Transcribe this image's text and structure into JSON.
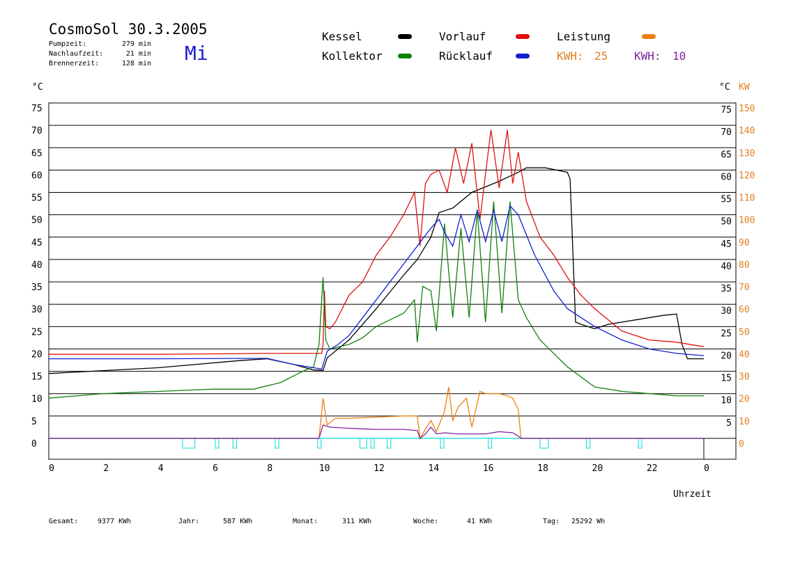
{
  "header": {
    "title": "CosmoSol 30.3.2005",
    "weekday": "Mi",
    "stats": [
      {
        "label": "Pumpzeit:",
        "value": "279 min"
      },
      {
        "label": "Nachlaufzeit:",
        "value": "21 min"
      },
      {
        "label": "Brennerzeit:",
        "value": "128 min"
      }
    ]
  },
  "legend": [
    {
      "name": "Kessel",
      "color": "#000000"
    },
    {
      "name": "Vorlauf",
      "color": "#e01010"
    },
    {
      "name": "Leistung",
      "color": "#f08010"
    },
    {
      "name": "Kollektor",
      "color": "#108010"
    },
    {
      "name": "Rücklauf",
      "color": "#1020d0"
    }
  ],
  "kwh": [
    {
      "label": "KWH:",
      "value": "25",
      "color": "#e08020"
    },
    {
      "label": "KWH:",
      "value": "10",
      "color": "#8020a0"
    }
  ],
  "footer": [
    {
      "label": "Gesamt:",
      "value": "9377 KWh"
    },
    {
      "label": "Jahr:",
      "value": "587 KWh"
    },
    {
      "label": "Monat:",
      "value": "311 KWh"
    },
    {
      "label": "Woche:",
      "value": "41 KWh"
    },
    {
      "label": "Tag:",
      "value": "25292 Wh"
    }
  ],
  "chart_data": {
    "type": "line",
    "xlabel": "Uhrzeit",
    "ylabel_left": "°C",
    "ylabel_right": "°C",
    "ylabel_power": "KW",
    "xlim": [
      0,
      24
    ],
    "ylim": [
      0,
      75
    ],
    "power_lim": [
      0,
      150
    ],
    "x_ticks": [
      "0",
      "2",
      "4",
      "6",
      "8",
      "10",
      "12",
      "14",
      "16",
      "18",
      "20",
      "22",
      "0"
    ],
    "y_ticks_left": [
      "75",
      "70",
      "65",
      "60",
      "55",
      "50",
      "45",
      "40",
      "35",
      "30",
      "25",
      "20",
      "15",
      "10",
      "5",
      "0"
    ],
    "y_ticks_right": [
      "75",
      "70",
      "65",
      "60",
      "55",
      "50",
      "45",
      "40",
      "35",
      "30",
      "25",
      "20",
      "15",
      "10",
      "5"
    ],
    "power_ticks": [
      "150",
      "140",
      "130",
      "120",
      "110",
      "100",
      "90",
      "80",
      "70",
      "60",
      "50",
      "40",
      "30",
      "20",
      "10",
      "0"
    ],
    "grid": true,
    "series": [
      {
        "name": "Kessel",
        "color": "#000000",
        "points": [
          [
            0,
            14.5
          ],
          [
            4,
            15.8
          ],
          [
            7,
            17.4
          ],
          [
            8,
            17.8
          ],
          [
            9,
            16.5
          ],
          [
            9.7,
            15.3
          ],
          [
            10.05,
            15.2
          ],
          [
            10.2,
            18
          ],
          [
            11,
            22
          ],
          [
            12,
            29
          ],
          [
            13,
            36.5
          ],
          [
            13.5,
            40
          ],
          [
            14,
            45
          ],
          [
            14.3,
            50.5
          ],
          [
            14.8,
            51.5
          ],
          [
            15.5,
            55
          ],
          [
            16.5,
            57.5
          ],
          [
            17.2,
            59.5
          ],
          [
            17.5,
            60.5
          ],
          [
            18.2,
            60.5
          ],
          [
            19,
            59.5
          ],
          [
            19.1,
            58
          ],
          [
            19.3,
            26
          ],
          [
            19.5,
            25.5
          ],
          [
            20,
            24.5
          ],
          [
            20.5,
            25.5
          ],
          [
            21.5,
            26.5
          ],
          [
            22.5,
            27.5
          ],
          [
            23,
            27.8
          ],
          [
            23.2,
            21
          ],
          [
            23.4,
            17.8
          ],
          [
            24,
            17.8
          ]
        ]
      },
      {
        "name": "Vorlauf",
        "color": "#e01010",
        "points": [
          [
            0,
            18.8
          ],
          [
            4,
            18.8
          ],
          [
            8,
            19
          ],
          [
            10,
            19
          ],
          [
            10.05,
            21
          ],
          [
            10.1,
            33
          ],
          [
            10.15,
            25
          ],
          [
            10.3,
            24.5
          ],
          [
            10.5,
            26
          ],
          [
            11,
            32
          ],
          [
            11.5,
            35
          ],
          [
            12,
            41
          ],
          [
            12.5,
            45
          ],
          [
            13,
            50
          ],
          [
            13.4,
            55
          ],
          [
            13.6,
            43
          ],
          [
            13.8,
            57
          ],
          [
            14,
            59
          ],
          [
            14.3,
            60
          ],
          [
            14.6,
            55
          ],
          [
            14.9,
            65
          ],
          [
            15.2,
            57
          ],
          [
            15.5,
            66
          ],
          [
            15.8,
            49
          ],
          [
            16.2,
            69
          ],
          [
            16.5,
            56
          ],
          [
            16.8,
            69
          ],
          [
            17,
            57
          ],
          [
            17.2,
            64
          ],
          [
            17.5,
            53
          ],
          [
            18,
            45
          ],
          [
            18.5,
            41
          ],
          [
            19,
            36
          ],
          [
            19.5,
            32
          ],
          [
            20,
            29
          ],
          [
            21,
            24
          ],
          [
            22,
            22
          ],
          [
            23,
            21.5
          ],
          [
            24,
            20.5
          ]
        ]
      },
      {
        "name": "Kollektor",
        "color": "#108010",
        "points": [
          [
            0,
            9
          ],
          [
            2,
            10
          ],
          [
            4,
            10.5
          ],
          [
            6,
            11
          ],
          [
            7.5,
            11
          ],
          [
            8.5,
            12.5
          ],
          [
            9.3,
            15
          ],
          [
            9.7,
            16
          ],
          [
            9.9,
            21
          ],
          [
            10.05,
            36
          ],
          [
            10.15,
            22
          ],
          [
            10.3,
            20
          ],
          [
            11,
            21
          ],
          [
            11.5,
            22.5
          ],
          [
            12,
            25
          ],
          [
            12.5,
            26.5
          ],
          [
            13,
            28
          ],
          [
            13.4,
            31
          ],
          [
            13.5,
            21.5
          ],
          [
            13.7,
            34
          ],
          [
            14,
            33
          ],
          [
            14.2,
            24
          ],
          [
            14.5,
            48
          ],
          [
            14.8,
            27
          ],
          [
            15.1,
            47
          ],
          [
            15.4,
            27
          ],
          [
            15.7,
            51
          ],
          [
            16,
            26
          ],
          [
            16.3,
            53
          ],
          [
            16.6,
            28
          ],
          [
            16.9,
            53
          ],
          [
            17.2,
            31
          ],
          [
            17.5,
            27
          ],
          [
            18,
            22
          ],
          [
            19,
            16
          ],
          [
            20,
            11.5
          ],
          [
            21,
            10.5
          ],
          [
            22,
            10
          ],
          [
            23,
            9.5
          ],
          [
            24,
            9.5
          ]
        ]
      },
      {
        "name": "Rücklauf",
        "color": "#1020d0",
        "points": [
          [
            0,
            17.8
          ],
          [
            4,
            17.8
          ],
          [
            8,
            17.9
          ],
          [
            9,
            16.5
          ],
          [
            10,
            15.5
          ],
          [
            10.05,
            16.5
          ],
          [
            10.2,
            19.5
          ],
          [
            10.6,
            21
          ],
          [
            11,
            23
          ],
          [
            12,
            31
          ],
          [
            13,
            39
          ],
          [
            13.5,
            43
          ],
          [
            14,
            47
          ],
          [
            14.3,
            49
          ],
          [
            14.5,
            46
          ],
          [
            14.8,
            43
          ],
          [
            15.1,
            50
          ],
          [
            15.4,
            44
          ],
          [
            15.7,
            51
          ],
          [
            16,
            44
          ],
          [
            16.3,
            51
          ],
          [
            16.6,
            44
          ],
          [
            16.9,
            52
          ],
          [
            17.2,
            50
          ],
          [
            17.8,
            41
          ],
          [
            18.5,
            33
          ],
          [
            19,
            29
          ],
          [
            20,
            25
          ],
          [
            21,
            22
          ],
          [
            22,
            20
          ],
          [
            23,
            19
          ],
          [
            24,
            18.5
          ]
        ]
      }
    ],
    "power_series": [
      {
        "name": "Leistung",
        "color": "#f08010",
        "points": [
          [
            0,
            0
          ],
          [
            9.9,
            0
          ],
          [
            10.05,
            18
          ],
          [
            10.2,
            6
          ],
          [
            10.5,
            9
          ],
          [
            11,
            9
          ],
          [
            12,
            9.5
          ],
          [
            13,
            10
          ],
          [
            13.5,
            10
          ],
          [
            13.6,
            0
          ],
          [
            13.8,
            4
          ],
          [
            14,
            8
          ],
          [
            14.2,
            3
          ],
          [
            14.5,
            12
          ],
          [
            14.65,
            23
          ],
          [
            14.8,
            8
          ],
          [
            15,
            14
          ],
          [
            15.3,
            18
          ],
          [
            15.5,
            5
          ],
          [
            15.8,
            21
          ],
          [
            16,
            20
          ],
          [
            16.2,
            20
          ],
          [
            16.5,
            20
          ],
          [
            16.8,
            19
          ],
          [
            17,
            18
          ],
          [
            17.2,
            13
          ],
          [
            17.3,
            0
          ],
          [
            24,
            0
          ]
        ]
      },
      {
        "name": "KWH",
        "color": "#8020a0",
        "points": [
          [
            0,
            0
          ],
          [
            9.9,
            0
          ],
          [
            10.05,
            6
          ],
          [
            10.3,
            5
          ],
          [
            11,
            4.5
          ],
          [
            12,
            4
          ],
          [
            13,
            4
          ],
          [
            13.5,
            3.5
          ],
          [
            13.6,
            0
          ],
          [
            13.8,
            2
          ],
          [
            14,
            5
          ],
          [
            14.2,
            2
          ],
          [
            14.5,
            2.5
          ],
          [
            15,
            2
          ],
          [
            15.5,
            2
          ],
          [
            16,
            2
          ],
          [
            16.5,
            3
          ],
          [
            17,
            2.5
          ],
          [
            17.2,
            1
          ],
          [
            17.3,
            0
          ],
          [
            24,
            0
          ]
        ]
      }
    ],
    "pump_ranges": [
      [
        4.9,
        5.35
      ],
      [
        6.1,
        6.2
      ],
      [
        6.75,
        6.85
      ],
      [
        8.3,
        8.4
      ],
      [
        9.85,
        9.95
      ],
      [
        11.4,
        11.65
      ],
      [
        11.8,
        11.9
      ],
      [
        12.4,
        12.5
      ],
      [
        14.35,
        14.45
      ],
      [
        16.1,
        16.2
      ],
      [
        18.0,
        18.3
      ],
      [
        19.7,
        19.8
      ],
      [
        21.6,
        21.7
      ]
    ]
  }
}
